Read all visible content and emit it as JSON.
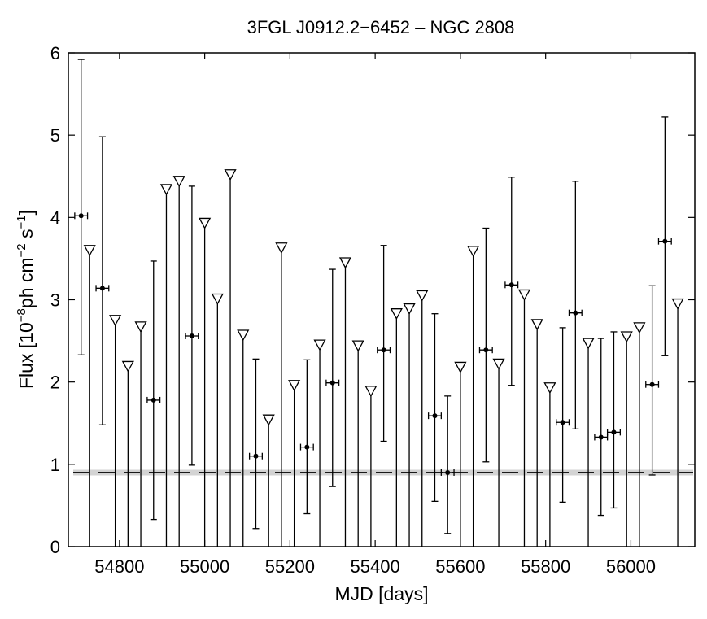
{
  "chart_data": {
    "type": "scatter",
    "title": "3FGL J0912.2−6452 – NGC 2808",
    "xlabel": "MJD [days]",
    "ylabel_parts": {
      "pre": "Flux [10",
      "exp1": "−8",
      "mid": "ph cm",
      "exp2": "−2",
      "mid2": " s",
      "exp3": "−1",
      "post": "]"
    },
    "xlim": [
      54680,
      56150
    ],
    "ylim": [
      0,
      6
    ],
    "xticks": [
      54800,
      55000,
      55200,
      55400,
      55600,
      55800,
      56000
    ],
    "yticks": [
      0,
      1,
      2,
      3,
      4,
      5,
      6
    ],
    "grid": false,
    "bin_half_width_days": 15,
    "reference_line": {
      "value": 0.9,
      "band_color": "#d3d3d3",
      "line_color": "#000000",
      "style": "dashed"
    },
    "detections": [
      {
        "x": 54710,
        "y": 4.02,
        "ylo": 2.33,
        "yhi": 5.92
      },
      {
        "x": 54760,
        "y": 3.14,
        "ylo": 1.48,
        "yhi": 4.98
      },
      {
        "x": 54880,
        "y": 1.78,
        "ylo": 0.33,
        "yhi": 3.47
      },
      {
        "x": 54970,
        "y": 2.56,
        "ylo": 0.99,
        "yhi": 4.38
      },
      {
        "x": 55120,
        "y": 1.1,
        "ylo": 0.22,
        "yhi": 2.28
      },
      {
        "x": 55240,
        "y": 1.21,
        "ylo": 0.4,
        "yhi": 2.27
      },
      {
        "x": 55300,
        "y": 1.99,
        "ylo": 0.73,
        "yhi": 3.37
      },
      {
        "x": 55420,
        "y": 2.39,
        "ylo": 1.28,
        "yhi": 3.66
      },
      {
        "x": 55540,
        "y": 1.59,
        "ylo": 0.55,
        "yhi": 2.83
      },
      {
        "x": 55570,
        "y": 0.9,
        "ylo": 0.16,
        "yhi": 1.83
      },
      {
        "x": 55660,
        "y": 2.39,
        "ylo": 1.03,
        "yhi": 3.87
      },
      {
        "x": 55720,
        "y": 3.18,
        "ylo": 1.96,
        "yhi": 4.49
      },
      {
        "x": 55840,
        "y": 1.51,
        "ylo": 0.54,
        "yhi": 2.66
      },
      {
        "x": 55870,
        "y": 2.84,
        "ylo": 1.43,
        "yhi": 4.44
      },
      {
        "x": 55930,
        "y": 1.33,
        "ylo": 0.38,
        "yhi": 2.53
      },
      {
        "x": 55960,
        "y": 1.39,
        "ylo": 0.47,
        "yhi": 2.61
      },
      {
        "x": 56050,
        "y": 1.97,
        "ylo": 0.87,
        "yhi": 3.17
      },
      {
        "x": 56080,
        "y": 3.71,
        "ylo": 2.32,
        "yhi": 5.22
      }
    ],
    "upper_limits": [
      {
        "x": 54730,
        "y": 3.6
      },
      {
        "x": 54790,
        "y": 2.75
      },
      {
        "x": 54820,
        "y": 2.19
      },
      {
        "x": 54850,
        "y": 2.67
      },
      {
        "x": 54910,
        "y": 4.34
      },
      {
        "x": 54940,
        "y": 4.44
      },
      {
        "x": 55000,
        "y": 3.93
      },
      {
        "x": 55030,
        "y": 3.01
      },
      {
        "x": 55060,
        "y": 4.52
      },
      {
        "x": 55090,
        "y": 2.57
      },
      {
        "x": 55150,
        "y": 1.54
      },
      {
        "x": 55180,
        "y": 3.63
      },
      {
        "x": 55210,
        "y": 1.96
      },
      {
        "x": 55270,
        "y": 2.45
      },
      {
        "x": 55330,
        "y": 3.45
      },
      {
        "x": 55360,
        "y": 2.44
      },
      {
        "x": 55390,
        "y": 1.89
      },
      {
        "x": 55450,
        "y": 2.83
      },
      {
        "x": 55480,
        "y": 2.89
      },
      {
        "x": 55510,
        "y": 3.05
      },
      {
        "x": 55600,
        "y": 2.18
      },
      {
        "x": 55630,
        "y": 3.59
      },
      {
        "x": 55690,
        "y": 2.22
      },
      {
        "x": 55750,
        "y": 3.06
      },
      {
        "x": 55780,
        "y": 2.7
      },
      {
        "x": 55810,
        "y": 1.93
      },
      {
        "x": 55900,
        "y": 2.47
      },
      {
        "x": 55990,
        "y": 2.55
      },
      {
        "x": 56020,
        "y": 2.66
      },
      {
        "x": 56110,
        "y": 2.95
      }
    ]
  }
}
